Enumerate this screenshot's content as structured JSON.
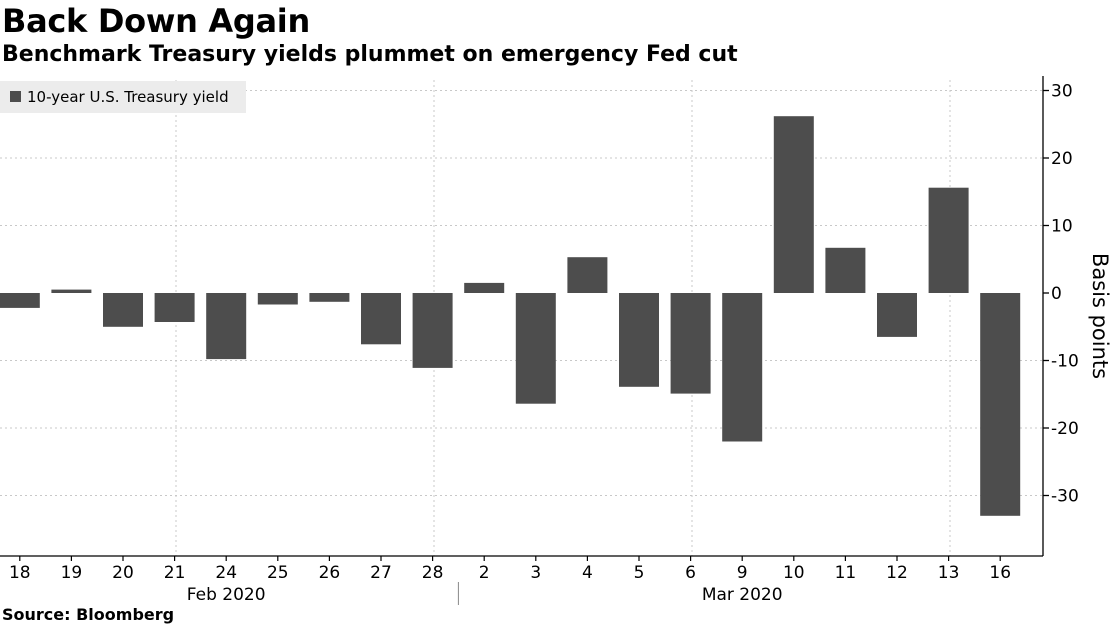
{
  "chart_data": {
    "type": "bar",
    "title": "Back Down Again",
    "subtitle": "Benchmark Treasury yields plummet on emergency Fed cut",
    "source": "Source: Bloomberg",
    "ylabel": "Basis points",
    "xlabel": "",
    "ylim": [
      -38,
      31
    ],
    "yticks": [
      30,
      20,
      10,
      0,
      -10,
      -20,
      -30
    ],
    "ytick_labels": [
      "30",
      "20",
      "10",
      "0",
      "-10",
      "-20",
      "-30"
    ],
    "gridlines": true,
    "legend_position": "top-left",
    "categories": [
      "18",
      "19",
      "20",
      "21",
      "24",
      "25",
      "26",
      "27",
      "28",
      "2",
      "3",
      "4",
      "5",
      "6",
      "9",
      "10",
      "11",
      "12",
      "13",
      "16"
    ],
    "month_groups": [
      {
        "label": "Feb 2020",
        "start_index": 0,
        "end_index": 8
      },
      {
        "label": "Mar 2020",
        "start_index": 9,
        "end_index": 19
      }
    ],
    "series": [
      {
        "name": "10-year U.S. Treasury yield",
        "color": "#4d4d4d",
        "values": [
          -2.2,
          0.5,
          -5.0,
          -4.3,
          -9.8,
          -1.7,
          -1.3,
          -7.6,
          -11.1,
          1.5,
          -16.4,
          5.3,
          -13.9,
          -14.9,
          -22.0,
          26.2,
          6.7,
          -6.5,
          15.6,
          -33.0
        ]
      }
    ]
  }
}
